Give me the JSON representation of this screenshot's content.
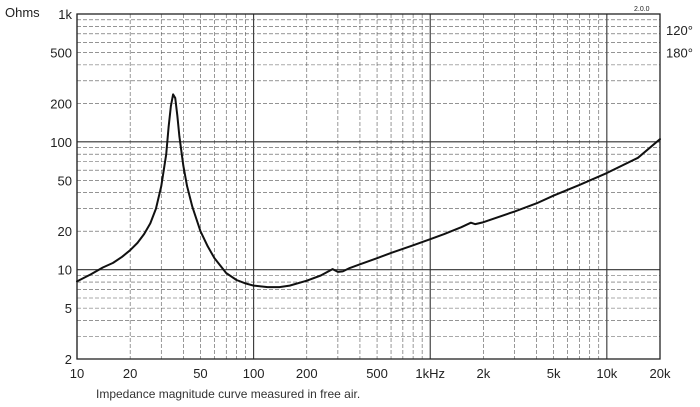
{
  "chart_data": {
    "type": "line",
    "ylabel": "Ohms",
    "version": "2.0.0",
    "caption": "Impedance magnitude curve measured in free air.",
    "x_scale": "log",
    "y_scale": "log",
    "xlim": [
      10,
      20000
    ],
    "ylim": [
      2,
      1000
    ],
    "x_ticks": [
      {
        "value": 10,
        "label": "10"
      },
      {
        "value": 20,
        "label": "20"
      },
      {
        "value": 50,
        "label": "50"
      },
      {
        "value": 100,
        "label": "100"
      },
      {
        "value": 200,
        "label": "200"
      },
      {
        "value": 500,
        "label": "500"
      },
      {
        "value": 1000,
        "label": "1kHz"
      },
      {
        "value": 2000,
        "label": "2k"
      },
      {
        "value": 5000,
        "label": "5k"
      },
      {
        "value": 10000,
        "label": "10k"
      },
      {
        "value": 20000,
        "label": "20k"
      }
    ],
    "y_ticks": [
      {
        "value": 1000,
        "label": "1k"
      },
      {
        "value": 500,
        "label": "500"
      },
      {
        "value": 200,
        "label": "200"
      },
      {
        "value": 100,
        "label": "100"
      },
      {
        "value": 50,
        "label": "50"
      },
      {
        "value": 20,
        "label": "20"
      },
      {
        "value": 10,
        "label": "10"
      },
      {
        "value": 5,
        "label": "5"
      },
      {
        "value": 2,
        "label": "2"
      }
    ],
    "right_labels": [
      {
        "value": 750,
        "label": "120°"
      },
      {
        "value": 500,
        "label": "180°"
      }
    ],
    "grid": true,
    "series": [
      {
        "color": "#111111",
        "points": [
          [
            10,
            8.1
          ],
          [
            12,
            9.2
          ],
          [
            14,
            10.4
          ],
          [
            16,
            11.3
          ],
          [
            18,
            12.6
          ],
          [
            20,
            14.2
          ],
          [
            22,
            16.2
          ],
          [
            24,
            19.0
          ],
          [
            26,
            23.0
          ],
          [
            28,
            30.0
          ],
          [
            30,
            45.0
          ],
          [
            32,
            80.0
          ],
          [
            33,
            130.0
          ],
          [
            34,
            190.0
          ],
          [
            35,
            235.0
          ],
          [
            36,
            220.0
          ],
          [
            37,
            160.0
          ],
          [
            38,
            110.0
          ],
          [
            40,
            65.0
          ],
          [
            42,
            45.0
          ],
          [
            45,
            31.0
          ],
          [
            50,
            20.0
          ],
          [
            55,
            15.2
          ],
          [
            60,
            12.3
          ],
          [
            70,
            9.4
          ],
          [
            80,
            8.3
          ],
          [
            90,
            7.8
          ],
          [
            100,
            7.5
          ],
          [
            120,
            7.3
          ],
          [
            140,
            7.3
          ],
          [
            160,
            7.5
          ],
          [
            200,
            8.2
          ],
          [
            240,
            9.0
          ],
          [
            280,
            10.1
          ],
          [
            300,
            9.6
          ],
          [
            320,
            9.7
          ],
          [
            350,
            10.3
          ],
          [
            400,
            11.0
          ],
          [
            500,
            12.3
          ],
          [
            600,
            13.5
          ],
          [
            800,
            15.5
          ],
          [
            1000,
            17.3
          ],
          [
            1200,
            19.0
          ],
          [
            1500,
            21.5
          ],
          [
            1700,
            23.3
          ],
          [
            1800,
            22.7
          ],
          [
            2000,
            23.5
          ],
          [
            3000,
            28.5
          ],
          [
            4000,
            33.0
          ],
          [
            5000,
            38.0
          ],
          [
            7000,
            46.0
          ],
          [
            10000,
            57.0
          ],
          [
            15000,
            75.0
          ],
          [
            20000,
            105.0
          ]
        ]
      }
    ]
  }
}
